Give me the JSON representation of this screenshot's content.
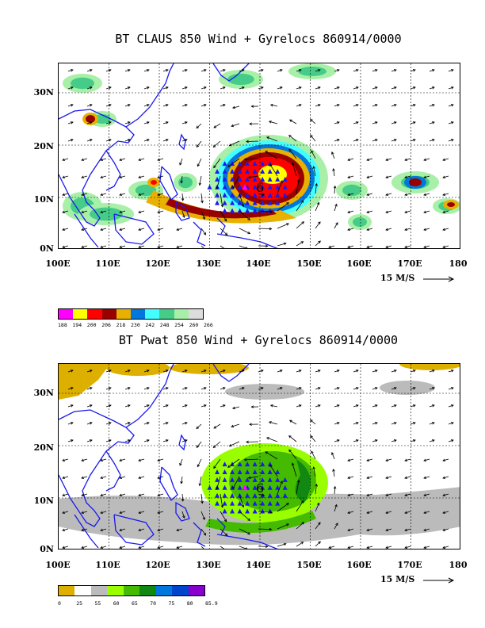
{
  "panels": [
    {
      "title": "BT CLAUS 850 Wind + Gyrelocs 860914/0000",
      "lat_labels": [
        "30N",
        "20N",
        "10N",
        "0N"
      ],
      "lon_labels": [
        "100E",
        "110E",
        "120E",
        "130E",
        "140E",
        "150E",
        "160E",
        "170E",
        "180"
      ],
      "ref_vector_label": "15 M/S",
      "storm_label": "6",
      "colorbar": {
        "colors": [
          "#ff00ff",
          "#ffff00",
          "#ff0000",
          "#990000",
          "#e8b000",
          "#0077dd",
          "#44ffff",
          "#44cc88",
          "#a8f0a8",
          "#dddddd"
        ],
        "labels": [
          "188",
          "194",
          "200",
          "206",
          "218",
          "230",
          "242",
          "248",
          "254",
          "260",
          "266"
        ]
      }
    },
    {
      "title": "BT Pwat 850 Wind + Gyrelocs 860914/0000",
      "lat_labels": [
        "30N",
        "20N",
        "10N",
        "0N"
      ],
      "lon_labels": [
        "100E",
        "110E",
        "120E",
        "130E",
        "140E",
        "150E",
        "160E",
        "170E",
        "180"
      ],
      "ref_vector_label": "15 M/S",
      "storm_label": "6",
      "colorbar": {
        "colors": [
          "#ddb000",
          "#ffffff",
          "#bbbbbb",
          "#99ff00",
          "#44bb00",
          "#118811",
          "#0077dd",
          "#0044cc",
          "#8800cc"
        ],
        "labels": [
          "0",
          "25",
          "55",
          "60",
          "65",
          "70",
          "75",
          "80",
          "85.9"
        ]
      }
    }
  ]
}
